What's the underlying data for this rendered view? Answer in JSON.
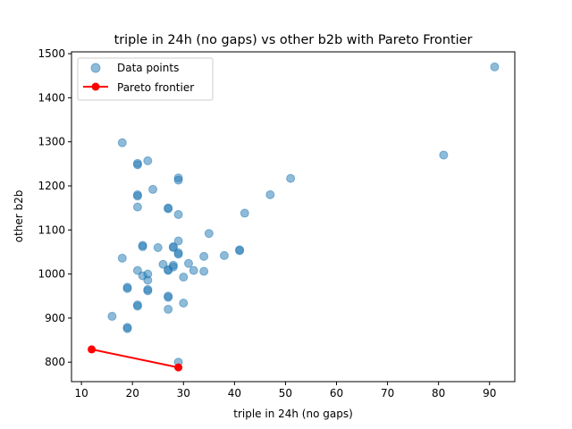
{
  "chart_data": {
    "type": "scatter",
    "title": "triple in 24h (no gaps) vs other b2b with Pareto Frontier",
    "xlabel": "triple in 24h (no gaps)",
    "ylabel": "other b2b",
    "xlim": [
      8.05,
      94.95
    ],
    "ylim": [
      755.8,
      1504.2
    ],
    "x_ticks": [
      10,
      20,
      30,
      40,
      50,
      60,
      70,
      80,
      90
    ],
    "y_ticks": [
      800,
      900,
      1000,
      1100,
      1200,
      1300,
      1400,
      1500
    ],
    "grid": false,
    "legend_position": "upper left",
    "colors": {
      "points": "#1f77b4",
      "frontier": "#ff0000"
    },
    "series": [
      {
        "name": "Data points",
        "kind": "scatter",
        "points": [
          [
            91,
            1470
          ],
          [
            81,
            1270
          ],
          [
            51,
            1217
          ],
          [
            47,
            1180
          ],
          [
            42,
            1138
          ],
          [
            35,
            1092
          ],
          [
            41,
            1055
          ],
          [
            41,
            1053
          ],
          [
            38,
            1042
          ],
          [
            34,
            1040
          ],
          [
            34,
            1006
          ],
          [
            32,
            1008
          ],
          [
            31,
            1024
          ],
          [
            30,
            993
          ],
          [
            30,
            934
          ],
          [
            29,
            1218
          ],
          [
            29,
            1213
          ],
          [
            29,
            1135
          ],
          [
            29,
            1075
          ],
          [
            29,
            1048
          ],
          [
            29,
            1045
          ],
          [
            29,
            800
          ],
          [
            28,
            1062
          ],
          [
            28,
            1060
          ],
          [
            28,
            1020
          ],
          [
            28,
            1016
          ],
          [
            27,
            1150
          ],
          [
            27,
            1148
          ],
          [
            27,
            1010
          ],
          [
            27,
            1008
          ],
          [
            27,
            950
          ],
          [
            27,
            947
          ],
          [
            27,
            920
          ],
          [
            26,
            1022
          ],
          [
            25,
            1060
          ],
          [
            24,
            1192
          ],
          [
            23,
            1257
          ],
          [
            23,
            1000
          ],
          [
            23,
            986
          ],
          [
            23,
            965
          ],
          [
            23,
            962
          ],
          [
            22,
            1065
          ],
          [
            22,
            1062
          ],
          [
            22,
            996
          ],
          [
            21,
            1251
          ],
          [
            21,
            1248
          ],
          [
            21,
            1180
          ],
          [
            21,
            1177
          ],
          [
            21,
            1152
          ],
          [
            21,
            1008
          ],
          [
            21,
            930
          ],
          [
            21,
            927
          ],
          [
            19,
            970
          ],
          [
            19,
            967
          ],
          [
            19,
            879
          ],
          [
            19,
            876
          ],
          [
            18,
            1298
          ],
          [
            18,
            1036
          ],
          [
            16,
            904
          ]
        ]
      },
      {
        "name": "Pareto frontier",
        "kind": "line",
        "points": [
          [
            12,
            829
          ],
          [
            29,
            788
          ]
        ]
      }
    ]
  }
}
